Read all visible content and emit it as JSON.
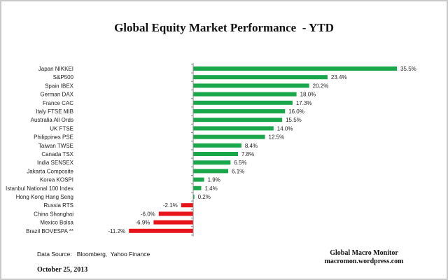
{
  "chart_data": {
    "type": "bar",
    "orientation": "horizontal",
    "title": "Global Equity Market Performance  - YTD",
    "categories": [
      "Japan NIKKEI",
      "S&P500",
      "Spain IBEX",
      "German DAX",
      "France CAC",
      "Italy FTSE  MIB",
      "Australia All Ords",
      "UK FTSE",
      "Philippines PSE",
      "Taiwan  TWSE",
      "Canada TSX",
      "India SENSEX",
      "Jakarta Composite",
      "Korea KOSPI",
      "Istanbul National  100 Index",
      "Hong Kong Hang Seng",
      "Russia RTS",
      "China Shanghai",
      "Mexico Bolsa",
      "Brazil BOVESPA **"
    ],
    "values": [
      35.5,
      23.4,
      20.2,
      18.0,
      17.3,
      16.0,
      15.5,
      14.0,
      12.5,
      8.4,
      7.8,
      6.5,
      6.1,
      1.9,
      1.4,
      0.2,
      -2.1,
      -6.0,
      -6.9,
      -11.2
    ],
    "value_labels": [
      "35.5%",
      "23.4%",
      "20.2%",
      "18.0%",
      "17.3%",
      "16.0%",
      "15.5%",
      "14.0%",
      "12.5%",
      "8.4%",
      "7.8%",
      "6.5%",
      "6.1%",
      "1.9%",
      "1.4%",
      "0.2%",
      "-2.1%",
      "-6.0%",
      "-6.9%",
      "-11.2%"
    ],
    "xlabel": "",
    "ylabel": "",
    "grid": false,
    "colors": {
      "positive": "#1aa64a",
      "negative": "#e8141b"
    }
  },
  "footer": {
    "source": "Data Source:   Bloomberg,  Yahoo Finance",
    "date": "October 25, 2013",
    "brand_name": "Global Macro Monitor",
    "brand_url": "macromon.wordpress.com"
  }
}
